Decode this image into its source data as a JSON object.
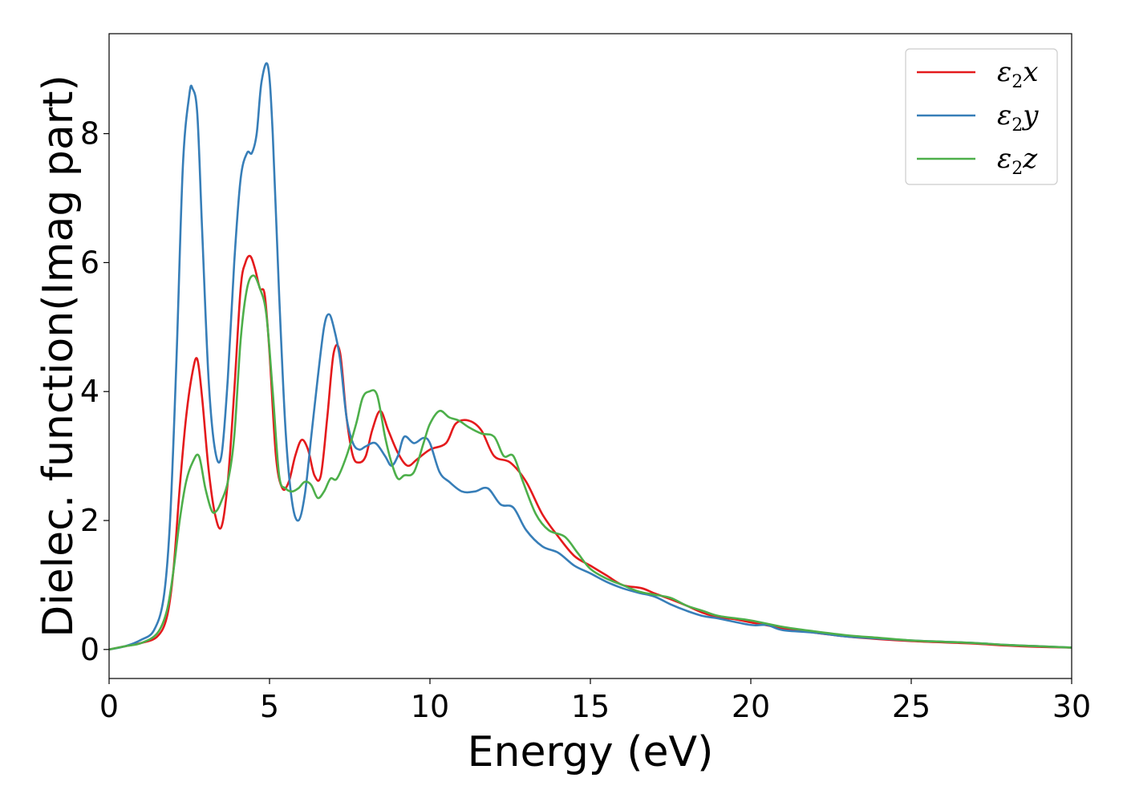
{
  "chart_data": {
    "type": "line",
    "xlabel": "Energy (eV)",
    "ylabel": "Dielec. function(Imag part)",
    "xlim": [
      0,
      30
    ],
    "ylim": [
      -0.45,
      9.55
    ],
    "xticks": [
      0,
      5,
      10,
      15,
      20,
      25,
      30
    ],
    "yticks": [
      0,
      2,
      4,
      6,
      8
    ],
    "grid": false,
    "legend_position": "top-right",
    "series": [
      {
        "name": "ε2x",
        "legend": {
          "base": "ε",
          "sub": "2",
          "tail": "x"
        },
        "color": "#e41a1c",
        "x": [
          0,
          0.5,
          1.0,
          1.5,
          1.8,
          2.0,
          2.2,
          2.4,
          2.6,
          2.75,
          2.9,
          3.1,
          3.3,
          3.5,
          3.7,
          3.9,
          4.1,
          4.25,
          4.4,
          4.55,
          4.7,
          4.85,
          5.0,
          5.2,
          5.4,
          5.6,
          5.8,
          6.0,
          6.2,
          6.4,
          6.6,
          6.8,
          7.0,
          7.2,
          7.4,
          7.6,
          7.8,
          8.0,
          8.2,
          8.45,
          8.7,
          9.0,
          9.3,
          9.6,
          10.0,
          10.5,
          10.8,
          11.2,
          11.6,
          12.0,
          12.5,
          13.0,
          13.5,
          14.0,
          14.5,
          15.0,
          15.5,
          16.0,
          16.6,
          17.0,
          17.5,
          18.0,
          18.5,
          19.0,
          19.5,
          20.0,
          21.0,
          22.0,
          23.0,
          24.0,
          25.0,
          26.0,
          27.0,
          28.0,
          29.0,
          30.0
        ],
        "values": [
          0.0,
          0.05,
          0.1,
          0.2,
          0.5,
          1.2,
          2.5,
          3.6,
          4.3,
          4.5,
          3.9,
          2.8,
          2.1,
          1.9,
          2.6,
          4.0,
          5.6,
          6.0,
          6.1,
          5.9,
          5.6,
          5.5,
          4.6,
          3.0,
          2.5,
          2.6,
          3.0,
          3.25,
          3.1,
          2.7,
          2.7,
          3.6,
          4.6,
          4.6,
          3.6,
          3.0,
          2.9,
          3.0,
          3.4,
          3.7,
          3.4,
          3.05,
          2.85,
          2.95,
          3.1,
          3.2,
          3.5,
          3.55,
          3.4,
          3.0,
          2.9,
          2.6,
          2.1,
          1.75,
          1.45,
          1.3,
          1.15,
          1.0,
          0.95,
          0.87,
          0.78,
          0.68,
          0.57,
          0.5,
          0.47,
          0.42,
          0.33,
          0.26,
          0.2,
          0.16,
          0.13,
          0.11,
          0.09,
          0.06,
          0.04,
          0.03
        ]
      },
      {
        "name": "ε2y",
        "legend": {
          "base": "ε",
          "sub": "2",
          "tail": "y"
        },
        "color": "#377eb8",
        "x": [
          0,
          0.5,
          1.0,
          1.4,
          1.7,
          1.9,
          2.1,
          2.3,
          2.5,
          2.6,
          2.75,
          2.9,
          3.1,
          3.3,
          3.5,
          3.7,
          3.9,
          4.1,
          4.3,
          4.45,
          4.6,
          4.75,
          4.95,
          5.1,
          5.3,
          5.5,
          5.7,
          5.9,
          6.1,
          6.3,
          6.5,
          6.7,
          6.85,
          7.0,
          7.2,
          7.4,
          7.6,
          7.8,
          8.0,
          8.3,
          8.6,
          8.8,
          9.0,
          9.2,
          9.5,
          9.8,
          10.0,
          10.3,
          10.6,
          11.0,
          11.4,
          11.8,
          12.2,
          12.6,
          13.0,
          13.5,
          14.0,
          14.5,
          15.0,
          15.5,
          16.0,
          16.5,
          17.0,
          17.5,
          18.0,
          18.5,
          19.0,
          20.0,
          20.5,
          21.0,
          22.0,
          23.0,
          24.0,
          25.0,
          26.0,
          27.0,
          28.0,
          29.0,
          30.0
        ],
        "values": [
          0.0,
          0.05,
          0.15,
          0.3,
          0.8,
          2.0,
          4.5,
          7.5,
          8.6,
          8.7,
          8.3,
          6.5,
          4.2,
          3.1,
          3.0,
          4.2,
          6.0,
          7.3,
          7.7,
          7.7,
          8.0,
          8.8,
          9.05,
          8.0,
          5.5,
          3.4,
          2.3,
          2.0,
          2.4,
          3.3,
          4.2,
          5.0,
          5.2,
          5.0,
          4.5,
          3.6,
          3.2,
          3.1,
          3.15,
          3.2,
          3.0,
          2.85,
          3.0,
          3.3,
          3.2,
          3.28,
          3.2,
          2.75,
          2.6,
          2.45,
          2.45,
          2.5,
          2.25,
          2.2,
          1.85,
          1.6,
          1.5,
          1.3,
          1.18,
          1.05,
          0.95,
          0.88,
          0.82,
          0.7,
          0.6,
          0.52,
          0.48,
          0.38,
          0.38,
          0.3,
          0.26,
          0.2,
          0.17,
          0.14,
          0.12,
          0.1,
          0.07,
          0.05,
          0.03
        ]
      },
      {
        "name": "ε2z",
        "legend": {
          "base": "ε",
          "sub": "2",
          "tail": "z"
        },
        "color": "#4daf4a",
        "x": [
          0,
          0.5,
          1.0,
          1.5,
          1.8,
          2.0,
          2.2,
          2.4,
          2.6,
          2.8,
          3.0,
          3.2,
          3.35,
          3.5,
          3.7,
          3.9,
          4.1,
          4.3,
          4.5,
          4.7,
          4.9,
          5.1,
          5.3,
          5.5,
          5.7,
          5.9,
          6.1,
          6.3,
          6.5,
          6.7,
          6.9,
          7.1,
          7.4,
          7.7,
          7.9,
          8.1,
          8.35,
          8.6,
          8.8,
          9.0,
          9.2,
          9.5,
          9.8,
          10.0,
          10.3,
          10.6,
          10.9,
          11.2,
          11.6,
          12.0,
          12.3,
          12.6,
          12.9,
          13.3,
          13.7,
          14.2,
          14.6,
          15.0,
          15.5,
          16.0,
          16.5,
          17.0,
          17.5,
          18.0,
          18.5,
          19.0,
          20.0,
          21.0,
          22.0,
          23.0,
          24.0,
          25.0,
          26.0,
          27.0,
          28.0,
          29.0,
          30.0
        ],
        "values": [
          0.0,
          0.05,
          0.1,
          0.25,
          0.6,
          1.2,
          2.0,
          2.6,
          2.9,
          3.0,
          2.5,
          2.15,
          2.15,
          2.3,
          2.6,
          3.3,
          4.8,
          5.6,
          5.8,
          5.6,
          5.2,
          4.0,
          2.7,
          2.5,
          2.45,
          2.5,
          2.6,
          2.55,
          2.35,
          2.45,
          2.65,
          2.65,
          3.0,
          3.5,
          3.9,
          4.0,
          3.95,
          3.3,
          2.9,
          2.65,
          2.7,
          2.75,
          3.2,
          3.5,
          3.7,
          3.6,
          3.55,
          3.45,
          3.35,
          3.3,
          3.0,
          3.0,
          2.6,
          2.1,
          1.85,
          1.75,
          1.5,
          1.25,
          1.1,
          1.0,
          0.9,
          0.85,
          0.8,
          0.68,
          0.6,
          0.52,
          0.45,
          0.35,
          0.28,
          0.22,
          0.18,
          0.14,
          0.12,
          0.1,
          0.07,
          0.05,
          0.03
        ]
      }
    ]
  }
}
